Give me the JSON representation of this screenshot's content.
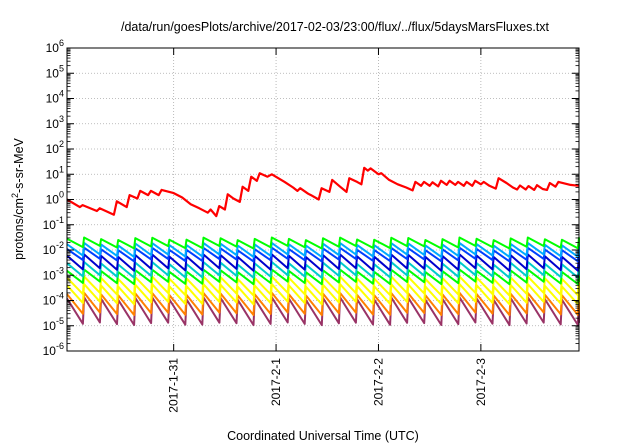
{
  "chart_data": {
    "type": "line",
    "title": "/data/run/goesPlots/archive/2017-02-03/23:00/flux/../flux/5daysMarsFluxes.txt",
    "xlabel": "Coordinated Universal Time (UTC)",
    "ylabel_parts": {
      "base": "protons/cm",
      "sup": "2",
      "rest": "-s-sr-MeV"
    },
    "y_scale": "log",
    "ylim": [
      1e-06,
      1000000.0
    ],
    "y_ticks": [
      {
        "base": "10",
        "exp": "-6",
        "value": 1e-06
      },
      {
        "base": "10",
        "exp": "-5",
        "value": 1e-05
      },
      {
        "base": "10",
        "exp": "-4",
        "value": 0.0001
      },
      {
        "base": "10",
        "exp": "-3",
        "value": 0.001
      },
      {
        "base": "10",
        "exp": "-2",
        "value": 0.01
      },
      {
        "base": "10",
        "exp": "-1",
        "value": 0.1
      },
      {
        "base": "10",
        "exp": "0",
        "value": 1
      },
      {
        "base": "10",
        "exp": "1",
        "value": 10
      },
      {
        "base": "10",
        "exp": "2",
        "value": 100
      },
      {
        "base": "10",
        "exp": "3",
        "value": 1000
      },
      {
        "base": "10",
        "exp": "4",
        "value": 10000
      },
      {
        "base": "10",
        "exp": "5",
        "value": 100000
      },
      {
        "base": "10",
        "exp": "6",
        "value": 1000000
      }
    ],
    "x_ticks": [
      {
        "label": "2017-1-31",
        "t": "2017-01-31T00:00"
      },
      {
        "label": "2017-2-1",
        "t": "2017-02-01T00:00"
      },
      {
        "label": "2017-2-2",
        "t": "2017-02-02T00:00"
      },
      {
        "label": "2017-2-3",
        "t": "2017-02-03T00:00"
      }
    ],
    "xlim": [
      "2017-01-29T23:00",
      "2017-02-03T23:00"
    ],
    "grid": true,
    "legend": "none",
    "series": [
      {
        "color": "#ff0000",
        "points": [
          [
            "2017-01-29T23:00",
            1.0
          ],
          [
            "2017-01-30T02:00",
            0.5
          ],
          [
            "2017-01-30T02:40",
            0.6
          ],
          [
            "2017-01-30T06:00",
            0.35
          ],
          [
            "2017-01-30T06:40",
            0.45
          ],
          [
            "2017-01-30T10:00",
            0.25
          ],
          [
            "2017-01-30T10:40",
            0.85
          ],
          [
            "2017-01-30T13:00",
            0.5
          ],
          [
            "2017-01-30T13:40",
            1.5
          ],
          [
            "2017-01-30T15:30",
            1.1
          ],
          [
            "2017-01-30T16:10",
            2.2
          ],
          [
            "2017-01-30T18:00",
            1.5
          ],
          [
            "2017-01-30T18:40",
            2.2
          ],
          [
            "2017-01-30T20:30",
            1.5
          ],
          [
            "2017-01-30T21:10",
            2.4
          ],
          [
            "2017-01-31T00:00",
            1.8
          ],
          [
            "2017-01-31T02:00",
            1.2
          ],
          [
            "2017-01-31T04:00",
            0.65
          ],
          [
            "2017-01-31T06:00",
            0.45
          ],
          [
            "2017-01-31T08:00",
            0.3
          ],
          [
            "2017-01-31T08:40",
            0.4
          ],
          [
            "2017-01-31T10:00",
            0.22
          ],
          [
            "2017-01-31T10:40",
            0.55
          ],
          [
            "2017-01-31T12:00",
            0.4
          ],
          [
            "2017-01-31T12:40",
            1.6
          ],
          [
            "2017-01-31T14:00",
            1.1
          ],
          [
            "2017-01-31T15:30",
            0.8
          ],
          [
            "2017-01-31T16:10",
            3.2
          ],
          [
            "2017-01-31T17:30",
            2.2
          ],
          [
            "2017-01-31T18:10",
            8.0
          ],
          [
            "2017-01-31T19:30",
            5.5
          ],
          [
            "2017-01-31T20:10",
            11.0
          ],
          [
            "2017-01-31T22:00",
            8.0
          ],
          [
            "2017-01-31T23:00",
            10.0
          ],
          [
            "2017-02-01T02:00",
            5.0
          ],
          [
            "2017-02-01T04:00",
            3.0
          ],
          [
            "2017-02-01T05:00",
            2.2
          ],
          [
            "2017-02-01T05:40",
            2.8
          ],
          [
            "2017-02-01T07:30",
            1.7
          ],
          [
            "2017-02-01T08:10",
            1.5
          ],
          [
            "2017-02-01T10:00",
            1.0
          ],
          [
            "2017-02-01T10:40",
            2.8
          ],
          [
            "2017-02-01T12:30",
            2.0
          ],
          [
            "2017-02-01T13:10",
            6.0
          ],
          [
            "2017-02-01T15:00",
            3.2
          ],
          [
            "2017-02-01T16:30",
            2.0
          ],
          [
            "2017-02-01T17:10",
            7.0
          ],
          [
            "2017-02-01T19:00",
            5.0
          ],
          [
            "2017-02-01T20:00",
            4.0
          ],
          [
            "2017-02-01T20:40",
            18.0
          ],
          [
            "2017-02-01T21:30",
            14.0
          ],
          [
            "2017-02-01T22:10",
            17.0
          ],
          [
            "2017-02-02T00:00",
            10.0
          ],
          [
            "2017-02-02T00:40",
            11.0
          ],
          [
            "2017-02-02T02:30",
            6.0
          ],
          [
            "2017-02-02T04:30",
            4.0
          ],
          [
            "2017-02-02T06:30",
            3.0
          ],
          [
            "2017-02-02T08:00",
            2.3
          ],
          [
            "2017-02-02T08:40",
            5.0
          ],
          [
            "2017-02-02T10:00",
            3.5
          ],
          [
            "2017-02-02T10:40",
            5.0
          ],
          [
            "2017-02-02T12:00",
            3.5
          ],
          [
            "2017-02-02T12:40",
            4.8
          ],
          [
            "2017-02-02T14:00",
            3.3
          ],
          [
            "2017-02-02T14:40",
            5.5
          ],
          [
            "2017-02-02T16:00",
            3.8
          ],
          [
            "2017-02-02T16:40",
            5.5
          ],
          [
            "2017-02-02T18:00",
            3.8
          ],
          [
            "2017-02-02T18:40",
            5.0
          ],
          [
            "2017-02-02T20:00",
            3.5
          ],
          [
            "2017-02-02T20:40",
            5.0
          ],
          [
            "2017-02-02T22:00",
            3.5
          ],
          [
            "2017-02-02T22:40",
            5.5
          ],
          [
            "2017-02-03T00:00",
            4.0
          ],
          [
            "2017-02-03T00:40",
            5.0
          ],
          [
            "2017-02-03T02:00",
            3.5
          ],
          [
            "2017-02-03T03:30",
            2.7
          ],
          [
            "2017-02-03T04:10",
            7.0
          ],
          [
            "2017-02-03T06:00",
            4.5
          ],
          [
            "2017-02-03T07:30",
            3.0
          ],
          [
            "2017-02-03T08:30",
            2.5
          ],
          [
            "2017-02-03T09:10",
            3.6
          ],
          [
            "2017-02-03T10:30",
            2.5
          ],
          [
            "2017-02-03T11:10",
            3.4
          ],
          [
            "2017-02-03T12:30",
            2.4
          ],
          [
            "2017-02-03T13:10",
            3.7
          ],
          [
            "2017-02-03T14:30",
            2.6
          ],
          [
            "2017-02-03T15:30",
            2.4
          ],
          [
            "2017-02-03T16:10",
            4.5
          ],
          [
            "2017-02-03T17:30",
            3.2
          ],
          [
            "2017-02-03T18:10",
            5.0
          ],
          [
            "2017-02-03T21:00",
            3.8
          ],
          [
            "2017-02-03T23:00",
            3.5
          ]
        ]
      },
      {
        "color": "#00ff00",
        "sawtooth": {
          "period_hours": 4,
          "peak": 0.028,
          "trough": 0.013
        }
      },
      {
        "color": "#00aaff",
        "sawtooth": {
          "period_hours": 4,
          "peak": 0.017,
          "trough": 0.006
        }
      },
      {
        "color": "#0040ff",
        "sawtooth": {
          "period_hours": 4,
          "peak": 0.011,
          "trough": 0.004
        }
      },
      {
        "color": "#0000cc",
        "sawtooth": {
          "period_hours": 4,
          "peak": 0.006,
          "trough": 0.0017
        }
      },
      {
        "color": "#00cccc",
        "sawtooth": {
          "period_hours": 4,
          "peak": 0.003,
          "trough": 0.0009
        }
      },
      {
        "color": "#00ff00",
        "sawtooth": {
          "period_hours": 4,
          "peak": 0.0015,
          "trough": 0.0005
        }
      },
      {
        "color": "#ffff00",
        "sawtooth": {
          "period_hours": 4,
          "peak": 0.0008,
          "trough": 0.00018
        }
      },
      {
        "color": "#ffff00",
        "sawtooth": {
          "period_hours": 4,
          "peak": 0.0004,
          "trough": 8e-05
        }
      },
      {
        "color": "#ff8000",
        "sawtooth": {
          "period_hours": 4,
          "peak": 0.00018,
          "trough": 3e-05
        }
      },
      {
        "color": "#993366",
        "sawtooth": {
          "period_hours": 4,
          "peak": 0.00012,
          "trough": 1.2e-05
        }
      }
    ]
  }
}
